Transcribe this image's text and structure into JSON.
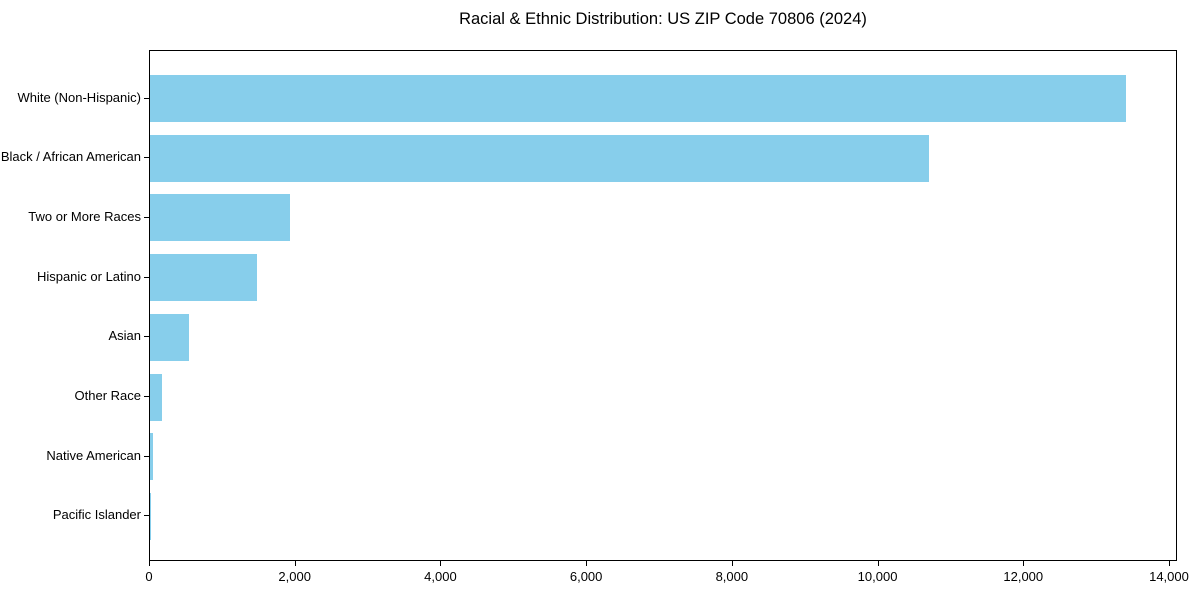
{
  "title": "Racial & Ethnic Distribution: US ZIP Code 70806 (2024)",
  "chart_data": {
    "type": "bar",
    "orientation": "horizontal",
    "title": "Racial & Ethnic Distribution: US ZIP Code 70806 (2024)",
    "xlabel": "",
    "ylabel": "",
    "categories": [
      "White (Non-Hispanic)",
      "Black / African American",
      "Two or More Races",
      "Hispanic or Latino",
      "Asian",
      "Other Race",
      "Native American",
      "Pacific Islander"
    ],
    "values": [
      13420,
      10720,
      1920,
      1470,
      540,
      165,
      35,
      10
    ],
    "xlim": [
      0,
      14110
    ],
    "x_ticks": [
      0,
      2000,
      4000,
      6000,
      8000,
      10000,
      12000,
      14000
    ],
    "x_tick_labels": [
      "0",
      "2,000",
      "4,000",
      "6,000",
      "8,000",
      "10,000",
      "12,000",
      "14,000"
    ],
    "bar_color": "#87CEEB",
    "frame_color": "#000000",
    "grid": false,
    "legend": null
  }
}
